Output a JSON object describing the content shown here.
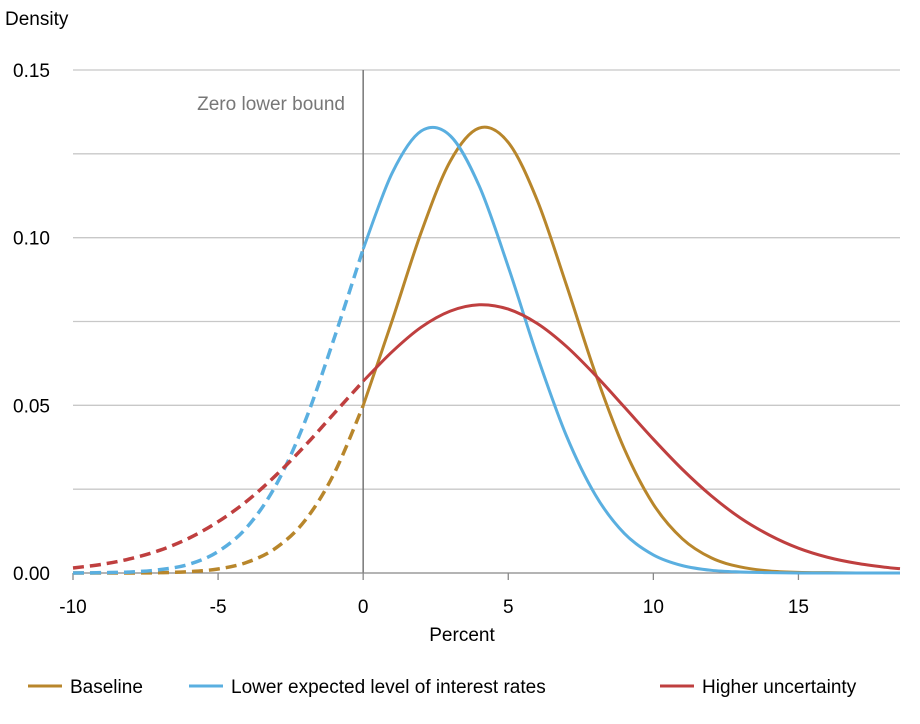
{
  "chart_data": {
    "type": "line",
    "title": "",
    "ylabel": "Density",
    "xlabel": "Percent",
    "xlim": [
      -10,
      18.5
    ],
    "ylim": [
      0,
      0.15
    ],
    "xticks": [
      -10,
      -5,
      0,
      5,
      10,
      15
    ],
    "xtick_labels": [
      "-10",
      "-5",
      "0",
      "5",
      "10",
      "15"
    ],
    "yticks": [
      0,
      0.05,
      0.1,
      0.15
    ],
    "ytick_labels": [
      "0.00",
      "0.05",
      "0.10",
      "0.15"
    ],
    "grid_y_step": 0.025,
    "grid": true,
    "legend_placement": "bottom",
    "annotation": {
      "text": "Zero lower bound",
      "x": 0
    },
    "dashed_below_x": 0,
    "x": [
      -10,
      -9,
      -8,
      -7,
      -6,
      -5,
      -4,
      -3,
      -2,
      -1,
      0,
      1,
      2,
      3,
      4,
      5,
      6,
      7,
      8,
      9,
      10,
      11,
      12,
      13,
      14,
      15,
      16,
      17,
      18,
      18.5
    ],
    "series": [
      {
        "name": "Baseline",
        "color": "#B8862B",
        "values": [
          0.0,
          0.0,
          0.0,
          0.0001,
          0.0004,
          0.0012,
          0.0032,
          0.0075,
          0.0157,
          0.0297,
          0.0499,
          0.0753,
          0.1016,
          0.1228,
          0.1327,
          0.1284,
          0.1111,
          0.086,
          0.0596,
          0.037,
          0.0205,
          0.0102,
          0.0045,
          0.0018,
          0.0006,
          0.0002,
          0.0001,
          0.0,
          0.0,
          0.0
        ]
      },
      {
        "name": "Lower expected level of interest rates",
        "color": "#5AAFE0",
        "values": [
          0.0,
          0.0001,
          0.0003,
          0.001,
          0.0026,
          0.0064,
          0.0137,
          0.0263,
          0.0453,
          0.07,
          0.0966,
          0.1193,
          0.1318,
          0.1304,
          0.1154,
          0.0913,
          0.0647,
          0.041,
          0.0233,
          0.0118,
          0.0054,
          0.0022,
          0.0008,
          0.0003,
          0.0001,
          0.0,
          0.0,
          0.0,
          0.0,
          0.0
        ]
      },
      {
        "name": "Higher uncertainty",
        "color": "#BF3F3F",
        "values": [
          0.0015,
          0.0026,
          0.0043,
          0.0068,
          0.0104,
          0.0153,
          0.0215,
          0.0292,
          0.038,
          0.0476,
          0.0572,
          0.066,
          0.0733,
          0.0781,
          0.08,
          0.0787,
          0.0744,
          0.0676,
          0.059,
          0.0495,
          0.0399,
          0.0309,
          0.023,
          0.0164,
          0.0113,
          0.0074,
          0.0047,
          0.0029,
          0.0017,
          0.0013
        ]
      }
    ]
  }
}
